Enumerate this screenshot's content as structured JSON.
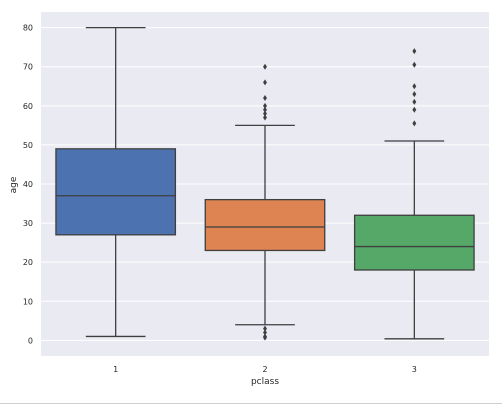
{
  "chart_data": {
    "type": "box",
    "xlabel": "pclass",
    "ylabel": "age",
    "ylim": [
      -4,
      84
    ],
    "yticks": [
      0,
      10,
      20,
      30,
      40,
      50,
      60,
      70,
      80
    ],
    "grid": true,
    "categories": [
      "1",
      "2",
      "3"
    ],
    "boxes": [
      {
        "category": "1",
        "color": "#4c72b0",
        "whisker_low": 1,
        "q1": 27,
        "median": 37,
        "q3": 49,
        "whisker_high": 80,
        "outliers": []
      },
      {
        "category": "2",
        "color": "#dd8452",
        "whisker_low": 4,
        "q1": 23,
        "median": 29,
        "q3": 36,
        "whisker_high": 55,
        "outliers": [
          0.7,
          1,
          2,
          3,
          57,
          58,
          59,
          60,
          62,
          66,
          70
        ]
      },
      {
        "category": "3",
        "color": "#55a868",
        "whisker_low": 0.4,
        "q1": 18,
        "median": 24,
        "q3": 32,
        "whisker_high": 51,
        "outliers": [
          55.5,
          59,
          61,
          63,
          65,
          70.5,
          74
        ]
      }
    ]
  },
  "colors": {
    "plot_background": "#eaeaf2",
    "grid": "#ffffff",
    "line": "#3f3f3f"
  }
}
